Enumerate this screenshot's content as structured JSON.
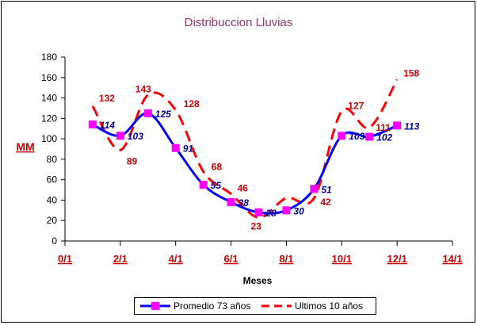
{
  "chart_data": {
    "type": "line",
    "title": "Distribuccion Lluvias",
    "xlabel": "Meses",
    "ylabel": "MM",
    "ylim": [
      0,
      180
    ],
    "yticks": [
      0,
      20,
      40,
      60,
      80,
      100,
      120,
      140,
      160,
      180
    ],
    "xlim": [
      0,
      14
    ],
    "xtick_values": [
      0,
      2,
      4,
      6,
      8,
      10,
      12,
      14
    ],
    "xtick_labels": [
      "0/1",
      "2/1",
      "4/1",
      "6/1",
      "8/1",
      "10/1",
      "12/1",
      "14/1"
    ],
    "x": [
      1,
      2,
      3,
      4,
      5,
      6,
      7,
      8,
      9,
      10,
      11,
      12
    ],
    "legend_position": "bottom",
    "grid": false,
    "series": [
      {
        "name": "Promedio 73 años",
        "values": [
          114,
          103,
          125,
          91,
          55,
          38,
          28,
          30,
          51,
          103,
          102,
          113
        ],
        "data_labels": [
          "114",
          "103",
          "125",
          "91",
          "55",
          "38",
          "28",
          "30",
          "51",
          "103",
          "102",
          "113"
        ],
        "color": "#0000ff",
        "label_color": "#000099",
        "marker_color": "#ff00ff",
        "style": "solid-smooth-with-square-markers"
      },
      {
        "name": "Ultimos 10 años",
        "values": [
          132,
          89,
          143,
          128,
          68,
          46,
          23,
          42,
          42,
          127,
          111,
          158
        ],
        "data_labels": [
          "132",
          "89",
          "143",
          "128",
          "68",
          "46",
          "23",
          "",
          "42",
          "127",
          "111",
          "158"
        ],
        "color": "#ff0000",
        "label_color": "#cc0000",
        "style": "dashed-smooth"
      }
    ]
  }
}
